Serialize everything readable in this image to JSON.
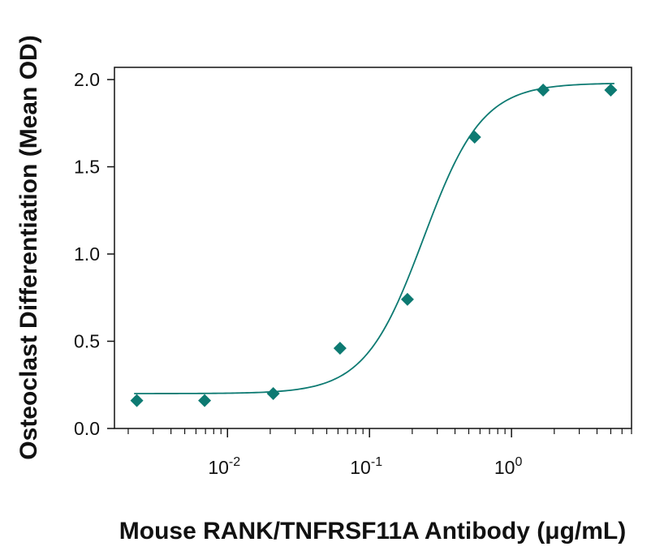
{
  "chart_data": {
    "type": "scatter",
    "xlabel": "Mouse RANK/TNFRSF11A Antibody (μg/mL)",
    "ylabel": "Osteoclast Differentiation (Mean OD)",
    "x_scale": "log",
    "xlim": [
      0.0016,
      7.0
    ],
    "ylim": [
      0.0,
      2.07
    ],
    "y_ticks": [
      0.0,
      0.5,
      1.0,
      1.5,
      2.0
    ],
    "y_tick_labels": [
      "0.0",
      "0.5",
      "1.0",
      "1.5",
      "2.0"
    ],
    "x_major_ticks": [
      {
        "value": 0.01,
        "base": "10",
        "exp": "-2"
      },
      {
        "value": 0.1,
        "base": "10",
        "exp": "-1"
      },
      {
        "value": 1.0,
        "base": "10",
        "exp": "0"
      }
    ],
    "grid": false,
    "marker": "diamond",
    "color": "#0d7a72",
    "series": [
      {
        "points": [
          {
            "x": 0.0023,
            "y": 0.16
          },
          {
            "x": 0.0069,
            "y": 0.16
          },
          {
            "x": 0.021,
            "y": 0.2
          },
          {
            "x": 0.062,
            "y": 0.46
          },
          {
            "x": 0.185,
            "y": 0.74
          },
          {
            "x": 0.55,
            "y": 1.67
          },
          {
            "x": 1.67,
            "y": 1.94
          },
          {
            "x": 5.0,
            "y": 1.94
          }
        ]
      }
    ],
    "fit": {
      "type": "4PL",
      "bottom": 0.2,
      "top": 1.98,
      "ec50": 0.24,
      "hill": 2.1
    }
  }
}
